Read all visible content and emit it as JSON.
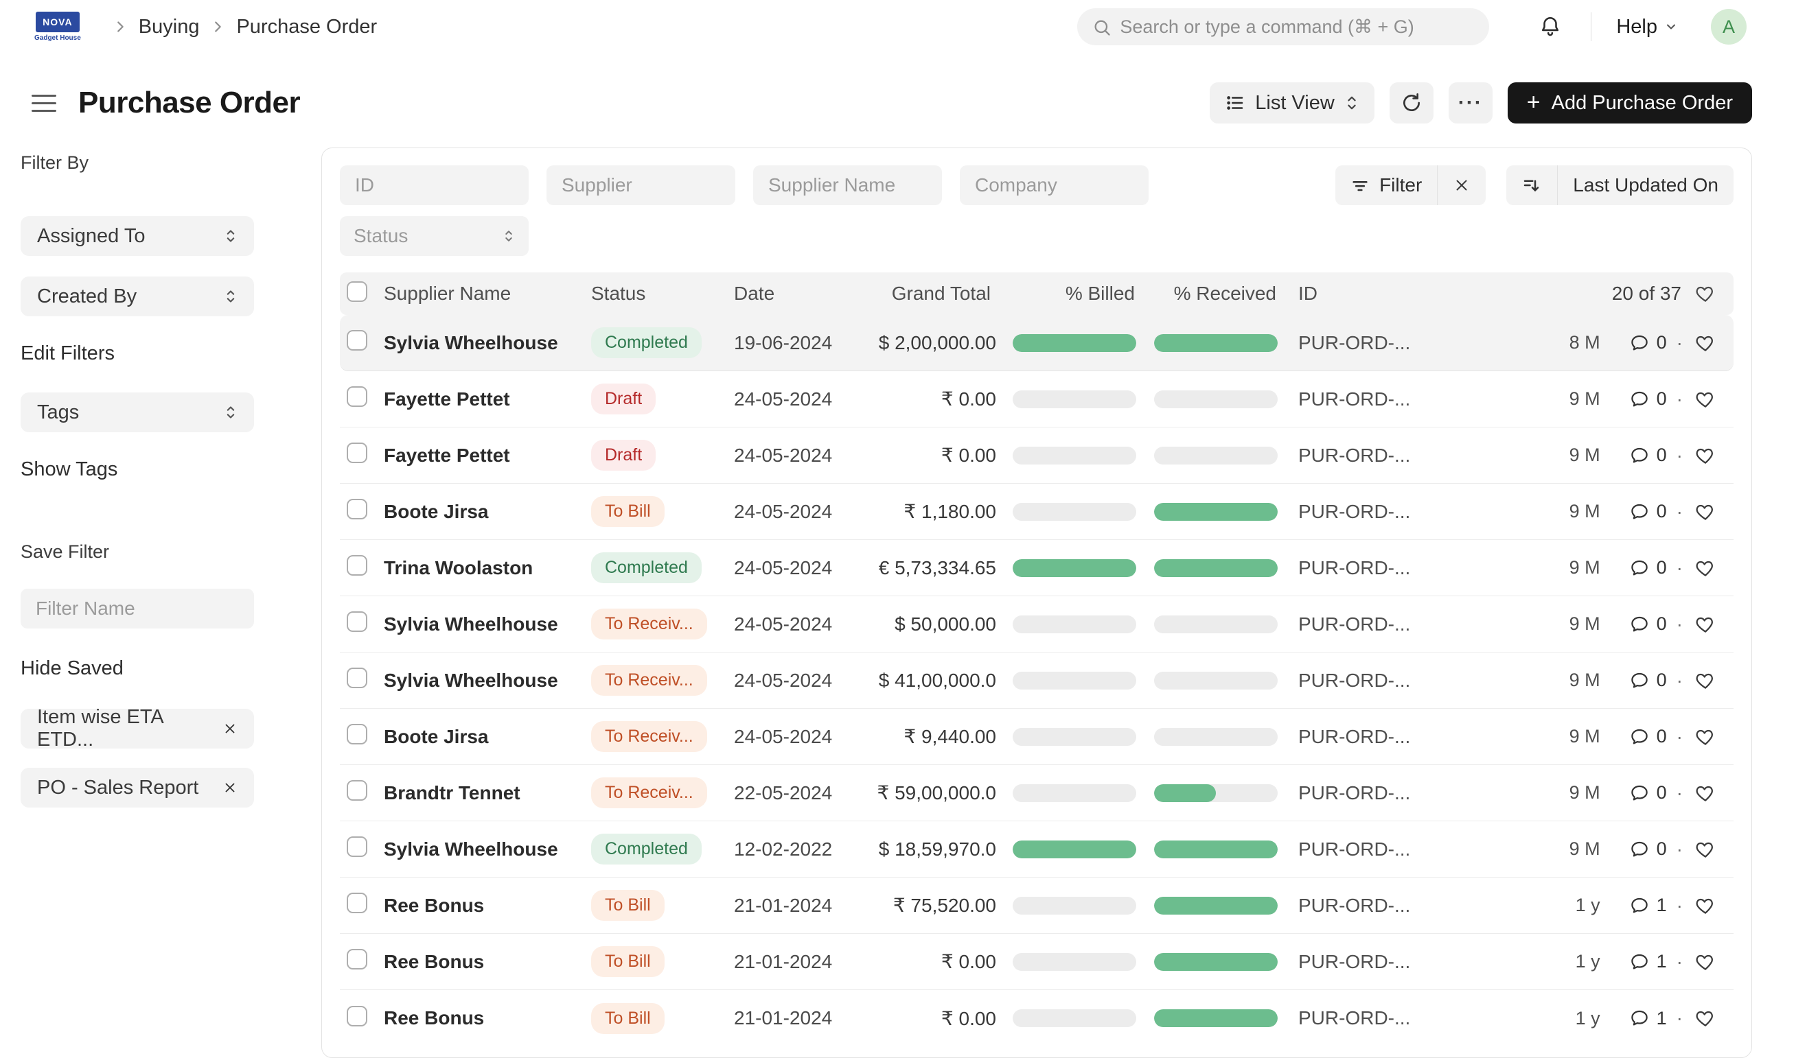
{
  "navbar": {
    "logo_title": "NOVA",
    "logo_subtitle": "Gadget House",
    "breadcrumbs": {
      "0": "Buying",
      "1": "Purchase Order"
    },
    "search_placeholder": "Search or type a command (⌘ + G)",
    "help_label": "Help",
    "avatar_initial": "A"
  },
  "header": {
    "title": "Purchase Order",
    "view_switcher_label": "List View",
    "add_button_label": "Add Purchase Order"
  },
  "icons": {
    "plus": "+",
    "ellipsis": "···",
    "dot_separator": "·"
  },
  "sidebar": {
    "filter_by_label": "Filter By",
    "assigned_to_label": "Assigned To",
    "created_by_label": "Created By",
    "edit_filters_label": "Edit Filters",
    "tags_label": "Tags",
    "show_tags_label": "Show Tags",
    "save_filter_label": "Save Filter",
    "filter_name_placeholder": "Filter Name",
    "hide_saved_label": "Hide Saved",
    "saved_filters": {
      "0": {
        "label": "Item wise ETA ETD..."
      },
      "1": {
        "label": "PO - Sales Report"
      }
    }
  },
  "filters": {
    "id_placeholder": "ID",
    "supplier_placeholder": "Supplier",
    "supplier_name_placeholder": "Supplier Name",
    "company_placeholder": "Company",
    "status_placeholder": "Status",
    "filter_button_label": "Filter",
    "sort_button_label": "Last Updated On"
  },
  "table": {
    "columns": {
      "supplier_name": "Supplier Name",
      "status": "Status",
      "date": "Date",
      "grand_total": "Grand Total",
      "billed": "% Billed",
      "received": "% Received",
      "id": "ID"
    },
    "count": "20 of 37",
    "rows": [
      {
        "supplier": "Sylvia Wheelhouse",
        "status": "Completed",
        "status_type": "completed",
        "date": "19-06-2024",
        "grand_total": "$ 2,00,000.00",
        "billed_pct": 100,
        "received_pct": 100,
        "id": "PUR-ORD-...",
        "age": "8 M",
        "comments": "0",
        "highlighted": true
      },
      {
        "supplier": "Fayette Pettet",
        "status": "Draft",
        "status_type": "draft",
        "date": "24-05-2024",
        "grand_total": "₹ 0.00",
        "billed_pct": 0,
        "received_pct": 0,
        "id": "PUR-ORD-...",
        "age": "9 M",
        "comments": "0",
        "highlighted": false
      },
      {
        "supplier": "Fayette Pettet",
        "status": "Draft",
        "status_type": "draft",
        "date": "24-05-2024",
        "grand_total": "₹ 0.00",
        "billed_pct": 0,
        "received_pct": 0,
        "id": "PUR-ORD-...",
        "age": "9 M",
        "comments": "0",
        "highlighted": false
      },
      {
        "supplier": "Boote Jirsa",
        "status": "To Bill",
        "status_type": "warn",
        "date": "24-05-2024",
        "grand_total": "₹ 1,180.00",
        "billed_pct": 0,
        "received_pct": 100,
        "id": "PUR-ORD-...",
        "age": "9 M",
        "comments": "0",
        "highlighted": false
      },
      {
        "supplier": "Trina Woolaston",
        "status": "Completed",
        "status_type": "completed",
        "date": "24-05-2024",
        "grand_total": "€ 5,73,334.65",
        "billed_pct": 100,
        "received_pct": 100,
        "id": "PUR-ORD-...",
        "age": "9 M",
        "comments": "0",
        "highlighted": false
      },
      {
        "supplier": "Sylvia Wheelhouse",
        "status": "To Receiv...",
        "status_type": "warn",
        "date": "24-05-2024",
        "grand_total": "$ 50,000.00",
        "billed_pct": 0,
        "received_pct": 0,
        "id": "PUR-ORD-...",
        "age": "9 M",
        "comments": "0",
        "highlighted": false
      },
      {
        "supplier": "Sylvia Wheelhouse",
        "status": "To Receiv...",
        "status_type": "warn",
        "date": "24-05-2024",
        "grand_total": "$ 41,00,000.0",
        "billed_pct": 0,
        "received_pct": 0,
        "id": "PUR-ORD-...",
        "age": "9 M",
        "comments": "0",
        "highlighted": false
      },
      {
        "supplier": "Boote Jirsa",
        "status": "To Receiv...",
        "status_type": "warn",
        "date": "24-05-2024",
        "grand_total": "₹ 9,440.00",
        "billed_pct": 0,
        "received_pct": 0,
        "id": "PUR-ORD-...",
        "age": "9 M",
        "comments": "0",
        "highlighted": false
      },
      {
        "supplier": "Brandtr Tennet",
        "status": "To Receiv...",
        "status_type": "warn",
        "date": "22-05-2024",
        "grand_total": "₹ 59,00,000.0",
        "billed_pct": 0,
        "received_pct": 50,
        "id": "PUR-ORD-...",
        "age": "9 M",
        "comments": "0",
        "highlighted": false
      },
      {
        "supplier": "Sylvia Wheelhouse",
        "status": "Completed",
        "status_type": "completed",
        "date": "12-02-2022",
        "grand_total": "$ 18,59,970.0",
        "billed_pct": 100,
        "received_pct": 100,
        "id": "PUR-ORD-...",
        "age": "9 M",
        "comments": "0",
        "highlighted": false
      },
      {
        "supplier": "Ree Bonus",
        "status": "To Bill",
        "status_type": "warn",
        "date": "21-01-2024",
        "grand_total": "₹ 75,520.00",
        "billed_pct": 0,
        "received_pct": 100,
        "id": "PUR-ORD-...",
        "age": "1 y",
        "comments": "1",
        "highlighted": false
      },
      {
        "supplier": "Ree Bonus",
        "status": "To Bill",
        "status_type": "warn",
        "date": "21-01-2024",
        "grand_total": "₹ 0.00",
        "billed_pct": 0,
        "received_pct": 100,
        "id": "PUR-ORD-...",
        "age": "1 y",
        "comments": "1",
        "highlighted": false
      },
      {
        "supplier": "Ree Bonus",
        "status": "To Bill",
        "status_type": "warn",
        "date": "21-01-2024",
        "grand_total": "₹ 0.00",
        "billed_pct": 0,
        "received_pct": 100,
        "id": "PUR-ORD-...",
        "age": "1 y",
        "comments": "1",
        "highlighted": false
      }
    ]
  },
  "colors": {
    "accent_green_bar": "#6cbd8e",
    "status_completed_text": "#2f7a4f",
    "status_completed_bg": "#e4f2e9",
    "status_draft_text": "#b52a2a",
    "status_draft_bg": "#fcecec",
    "status_warn_text": "#bf4f26",
    "status_warn_bg": "#fdeee4",
    "brand_logo_blue": "#2b4aa0",
    "add_button_bg": "#171717",
    "avatar_bg": "#d6ecd5",
    "avatar_text": "#3f8f4f"
  }
}
